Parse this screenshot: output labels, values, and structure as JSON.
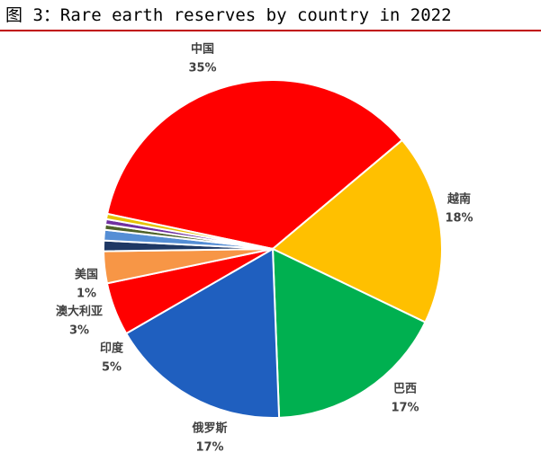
{
  "chart_data": {
    "type": "pie",
    "title": "图 3：Rare earth reserves by country in 2022",
    "categories": [
      "中国",
      "越南",
      "巴西",
      "俄罗斯",
      "印度",
      "澳大利亚",
      "美国",
      null,
      null,
      null,
      null
    ],
    "values": [
      35,
      18,
      17,
      17,
      5,
      3,
      1,
      1,
      0.5,
      0.5,
      0.5
    ],
    "value_labels": [
      "35%",
      "18%",
      "17%",
      "17%",
      "5%",
      "3%",
      "1%",
      null,
      null,
      null,
      null
    ],
    "colors": [
      "#ff0000",
      "#ffc000",
      "#00b050",
      "#1f5fbf",
      "#ff0000",
      "#f79646",
      "#1f3864",
      "#558ed5",
      "#4f6228",
      "#7030a0",
      "#e6c200"
    ]
  }
}
